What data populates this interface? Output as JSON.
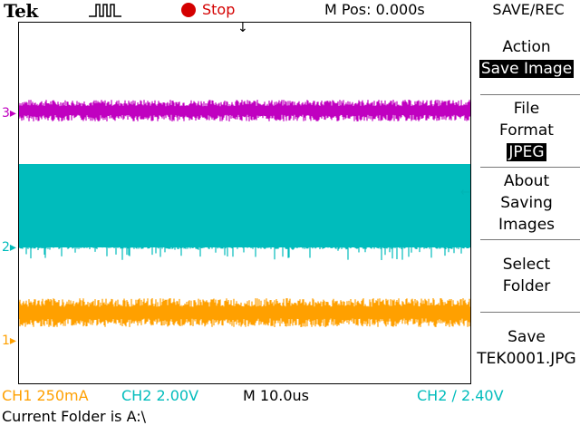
{
  "header": {
    "brand": "Tek",
    "trigger_icon": "pulse-icon",
    "run_state_icon": "stop-dot-icon",
    "run_state": "Stop",
    "m_pos": "M Pos: 0.000s",
    "menu_title": "SAVE/REC"
  },
  "channels": {
    "ch3": {
      "marker": "3▸",
      "color": "#c000c0"
    },
    "ch2": {
      "marker": "2▸",
      "color": "#00bcbc"
    },
    "ch1": {
      "marker": "1▸",
      "color": "#ffa000"
    }
  },
  "markers": {
    "trigger_position": "↓",
    "trigger_level": "←"
  },
  "side_menu": {
    "action": {
      "label": "Action",
      "value": "Save Image"
    },
    "file_format": {
      "label_1": "File",
      "label_2": "Format",
      "value": "JPEG"
    },
    "about": {
      "line_1": "About",
      "line_2": "Saving",
      "line_3": "Images"
    },
    "select_folder": {
      "line_1": "Select",
      "line_2": "Folder"
    },
    "save": {
      "line_1": "Save",
      "line_2": "TEK0001.JPG"
    }
  },
  "status": {
    "ch1": "CH1  250mA",
    "ch2": "CH2  2.00V",
    "timebase": "M 10.0us",
    "trigger": "CH2 ∕ 2.40V",
    "folder": "Current Folder is A:\\"
  },
  "colors": {
    "ch1": "#ffa000",
    "ch2": "#00bcbc",
    "ch3": "#c000c0",
    "stop": "#d40000"
  }
}
